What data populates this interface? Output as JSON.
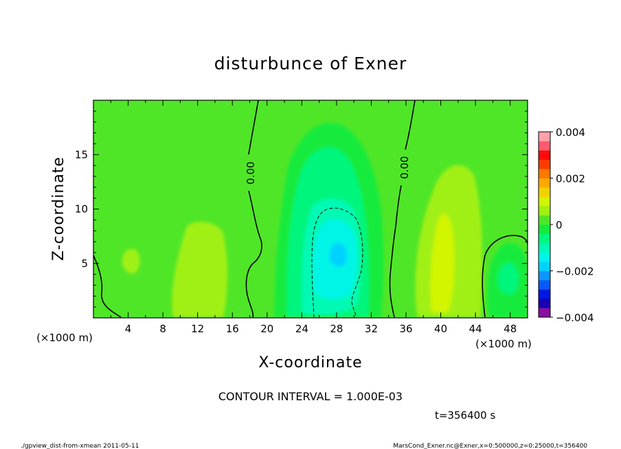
{
  "chart_data": {
    "type": "heatmap",
    "title": "disturbunce of Exner",
    "xlabel": "X-coordinate",
    "ylabel": "Z-coordinate",
    "x_unit": "(×1000 m)",
    "y_unit": "(×1000 m)",
    "xlim": [
      0,
      50
    ],
    "ylim": [
      0,
      20
    ],
    "x_ticks": [
      4,
      8,
      12,
      16,
      20,
      24,
      28,
      32,
      36,
      40,
      44,
      48
    ],
    "y_ticks": [
      5,
      10,
      15
    ],
    "colorbar": {
      "vmin": -0.004,
      "vmax": 0.004,
      "step": 0.0004,
      "tick_values": [
        0.004,
        0.002,
        0,
        -0.002,
        -0.004
      ],
      "tick_labels": [
        "0.004",
        "0.002",
        "0",
        "−0.002",
        "−0.004"
      ],
      "colors": [
        "#8a0fa0",
        "#1a00b4",
        "#0018e0",
        "#0a5af5",
        "#0f96fb",
        "#00d2ff",
        "#00f5e6",
        "#00fab4",
        "#00f57d",
        "#14eb3c",
        "#50e628",
        "#a0f014",
        "#d2f500",
        "#f0d200",
        "#ffaa00",
        "#ff7800",
        "#ff3c00",
        "#ff0a0a",
        "#ff5a6e",
        "#ffa0aa"
      ]
    },
    "contour_labels": [
      "0.00",
      "0.00"
    ],
    "features": [
      {
        "x": 28,
        "z": 5.5,
        "value": -0.0022,
        "note": "minimum"
      },
      {
        "x": 40,
        "z": 4.5,
        "value": 0.0009,
        "note": "maximum"
      },
      {
        "x": 12,
        "z": 4.5,
        "value": 0.0006,
        "note": "maximum"
      },
      {
        "x": 47.5,
        "z": 3.5,
        "value": -0.0007,
        "note": "minimum"
      }
    ]
  },
  "annotations": {
    "contour_interval": "CONTOUR INTERVAL = 1.000E-03",
    "time": "t=356400  s",
    "footer_left": "./gpview_dist-from-xmean  2011-05-11",
    "footer_right": "MarsCond_Exner.nc@Exner,x=0:500000,z=0:25000,t=356400"
  }
}
